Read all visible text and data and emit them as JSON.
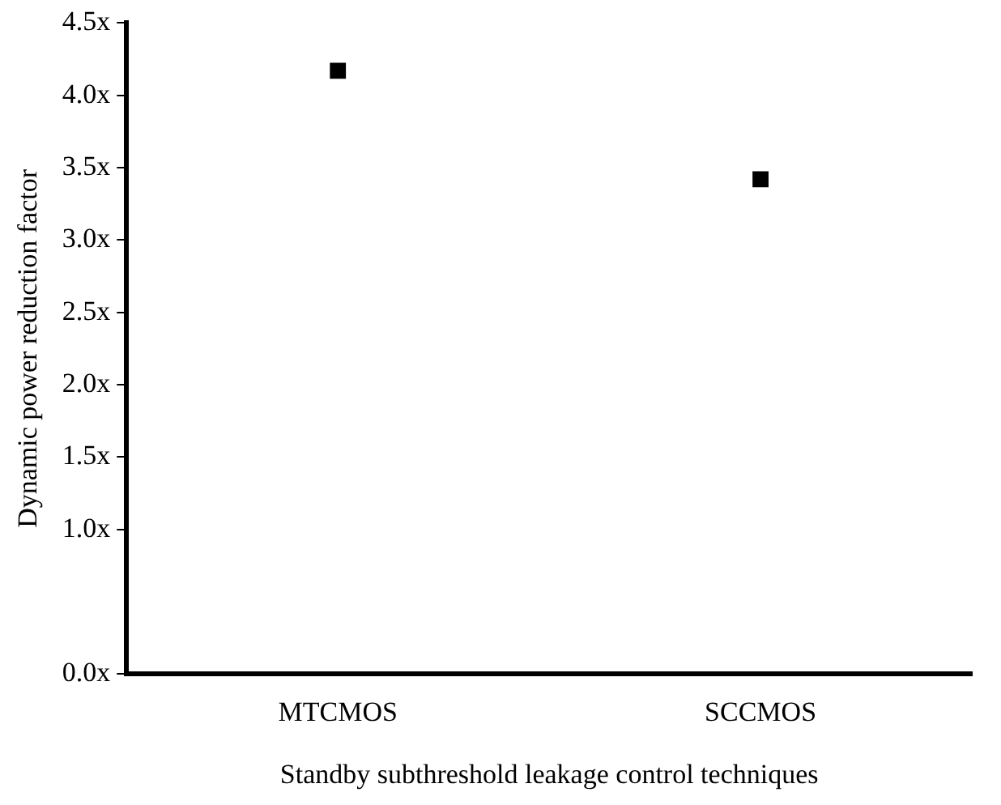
{
  "chart_data": {
    "type": "scatter",
    "xlabel": "Standby subthreshold leakage control techniques",
    "ylabel": "Dynamic power reduction factor",
    "categories": [
      "MTCMOS",
      "SCCMOS"
    ],
    "series": [
      {
        "color": "#000000",
        "values": [
          4.17,
          3.42
        ]
      }
    ],
    "ylim": [
      0,
      4.5
    ],
    "yticks": [
      {
        "value": 0,
        "label": "0.0x"
      },
      {
        "value": 1,
        "label": "1.0x"
      },
      {
        "value": 1.5,
        "label": "1.5x"
      },
      {
        "value": 2,
        "label": "2.0x"
      },
      {
        "value": 2.5,
        "label": "2.5x"
      },
      {
        "value": 3,
        "label": "3.0x"
      },
      {
        "value": 3.5,
        "label": "3.5x"
      },
      {
        "value": 4,
        "label": "4.0x"
      },
      {
        "value": 4.5,
        "label": "4.5x"
      }
    ],
    "grid": false,
    "legend": false,
    "marker": "square"
  }
}
